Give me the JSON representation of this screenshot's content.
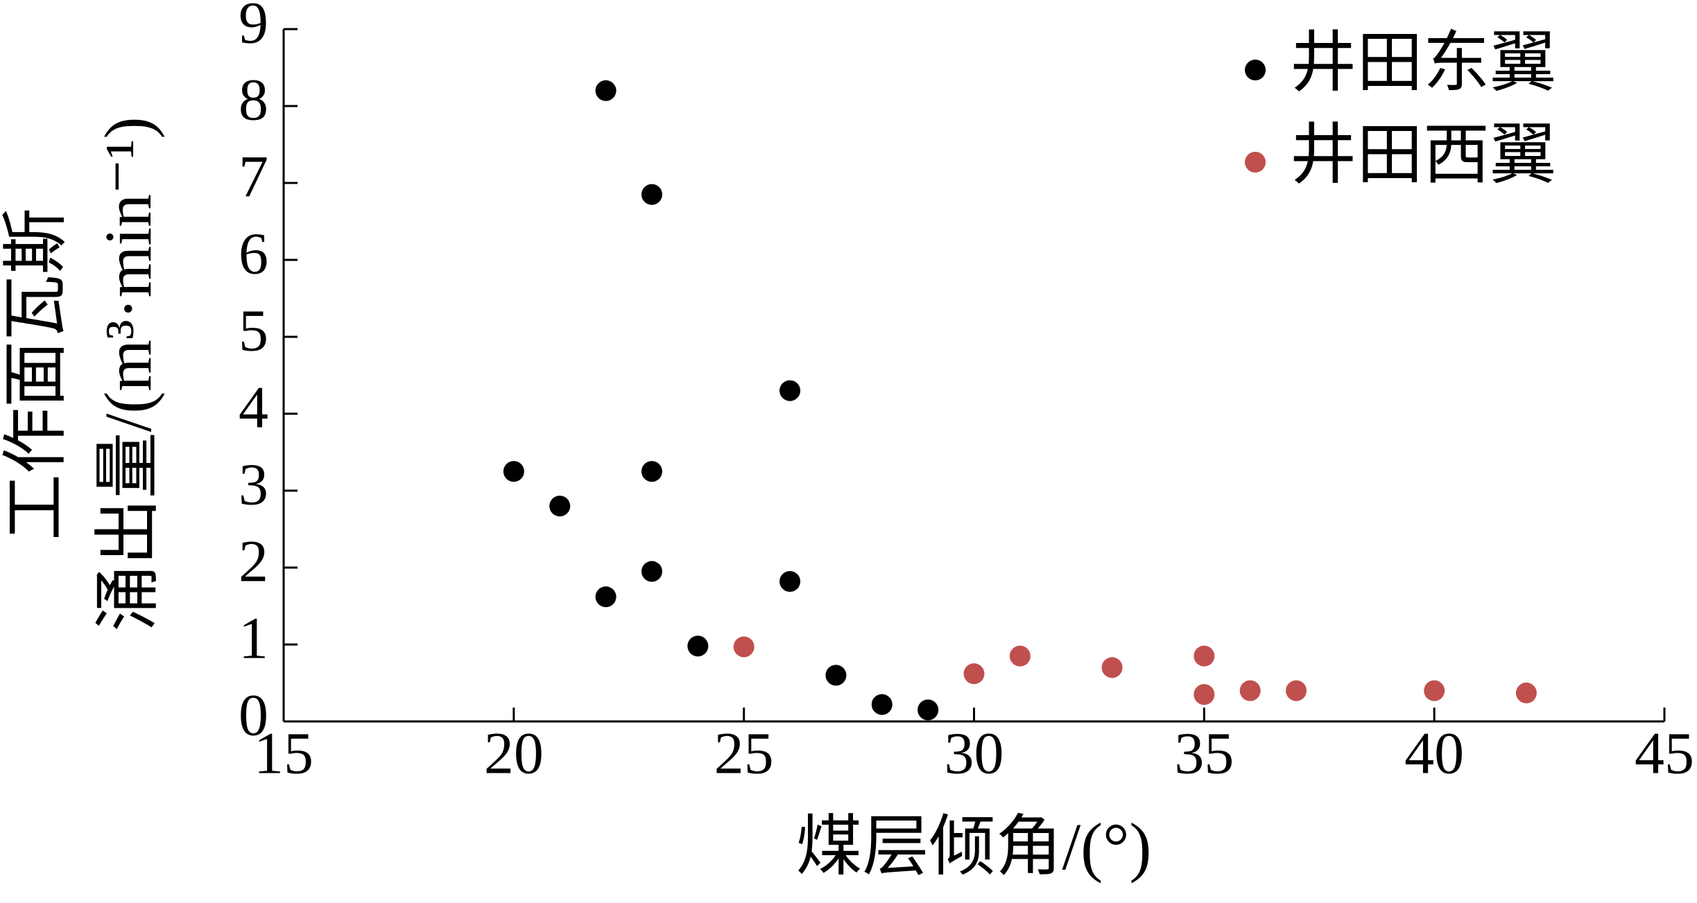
{
  "chart_data": {
    "type": "scatter",
    "x_label": "煤层倾角/(°)",
    "y_label": [
      "工作面瓦斯",
      "涌出量/(m³·min⁻¹)"
    ],
    "xlim": [
      15,
      45
    ],
    "xticks": [
      15,
      20,
      25,
      30,
      35,
      40,
      45
    ],
    "ylim": [
      0,
      9
    ],
    "yticks": [
      0,
      1,
      2,
      3,
      4,
      5,
      6,
      7,
      8,
      9
    ],
    "legend": "upper right",
    "series": [
      {
        "name": "井田东翼",
        "color": "#000000",
        "x": [
          20,
          21,
          22,
          22,
          23,
          23,
          23,
          24,
          26,
          26,
          27,
          28,
          29
        ],
        "values": [
          3.25,
          2.8,
          8.2,
          1.62,
          6.85,
          3.25,
          1.95,
          0.98,
          4.3,
          1.82,
          0.6,
          0.22,
          0.15
        ]
      },
      {
        "name": "井田西翼",
        "color": "#c0504d",
        "x": [
          25,
          30,
          31,
          33,
          35,
          35,
          36,
          37,
          40,
          42
        ],
        "values": [
          0.97,
          0.62,
          0.85,
          0.7,
          0.85,
          0.35,
          0.4,
          0.4,
          0.4,
          0.37
        ]
      }
    ]
  }
}
